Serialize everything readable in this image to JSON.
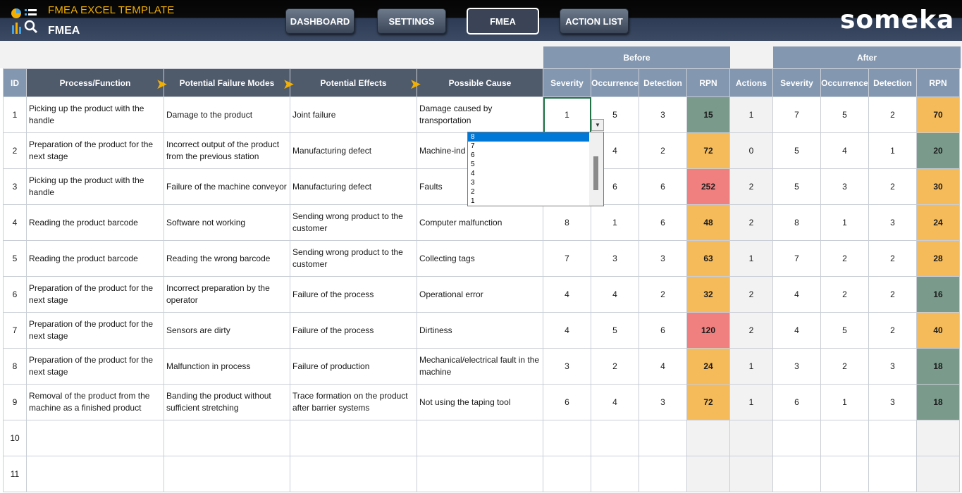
{
  "header": {
    "app_title": "FMEA EXCEL TEMPLATE",
    "page_title": "FMEA",
    "brand": "someka",
    "nav": [
      {
        "label": "DASHBOARD",
        "active": false
      },
      {
        "label": "SETTINGS",
        "active": false
      },
      {
        "label": "FMEA",
        "active": true
      },
      {
        "label": "ACTION LIST",
        "active": false
      }
    ]
  },
  "groups": {
    "before": "Before",
    "after": "After"
  },
  "columns": {
    "id": "ID",
    "process": "Process/Function",
    "failure": "Potential Failure Modes",
    "effects": "Potential Effects",
    "cause": "Possible Cause",
    "severity": "Severity",
    "occurrence": "Occurrence",
    "detection": "Detection",
    "rpn": "RPN",
    "actions": "Actions",
    "severity2": "Severity",
    "occurrence2": "Occurrence",
    "detection2": "Detection",
    "rpn2": "RPN"
  },
  "rows": [
    {
      "id": "1",
      "process": "Picking up the product with the handle",
      "failure": "Damage to the product",
      "effects": "Joint failure",
      "cause": "Damage caused by transportation",
      "sev": "1",
      "occ": "5",
      "det": "3",
      "rpn": "15",
      "act": "1",
      "sev2": "7",
      "occ2": "5",
      "det2": "2",
      "rpn2": "70"
    },
    {
      "id": "2",
      "process": "Preparation of the product for the next stage",
      "failure": "Incorrect output of the product from the previous station",
      "effects": "Manufacturing defect",
      "cause": "Machine-ind",
      "sev": "",
      "occ": "4",
      "det": "2",
      "rpn": "72",
      "act": "0",
      "sev2": "5",
      "occ2": "4",
      "det2": "1",
      "rpn2": "20"
    },
    {
      "id": "3",
      "process": "Picking up the product with the handle",
      "failure": "Failure of the machine conveyor",
      "effects": "Manufacturing defect",
      "cause": "Faults",
      "sev": "",
      "occ": "6",
      "det": "6",
      "rpn": "252",
      "act": "2",
      "sev2": "5",
      "occ2": "3",
      "det2": "2",
      "rpn2": "30"
    },
    {
      "id": "4",
      "process": "Reading the product barcode",
      "failure": "Software not working",
      "effects": "Sending wrong product to the customer",
      "cause": "Computer malfunction",
      "sev": "8",
      "occ": "1",
      "det": "6",
      "rpn": "48",
      "act": "2",
      "sev2": "8",
      "occ2": "1",
      "det2": "3",
      "rpn2": "24"
    },
    {
      "id": "5",
      "process": "Reading the product barcode",
      "failure": "Reading the wrong barcode",
      "effects": "Sending wrong product to the customer",
      "cause": "Collecting tags",
      "sev": "7",
      "occ": "3",
      "det": "3",
      "rpn": "63",
      "act": "1",
      "sev2": "7",
      "occ2": "2",
      "det2": "2",
      "rpn2": "28"
    },
    {
      "id": "6",
      "process": "Preparation of the product for the next stage",
      "failure": "Incorrect preparation by the operator",
      "effects": "Failure of the process",
      "cause": "Operational error",
      "sev": "4",
      "occ": "4",
      "det": "2",
      "rpn": "32",
      "act": "2",
      "sev2": "4",
      "occ2": "2",
      "det2": "2",
      "rpn2": "16"
    },
    {
      "id": "7",
      "process": "Preparation of the product for the next stage",
      "failure": "Sensors are dirty",
      "effects": "Failure of the process",
      "cause": "Dirtiness",
      "sev": "4",
      "occ": "5",
      "det": "6",
      "rpn": "120",
      "act": "2",
      "sev2": "4",
      "occ2": "5",
      "det2": "2",
      "rpn2": "40"
    },
    {
      "id": "8",
      "process": "Preparation of the product for the next stage",
      "failure": "Malfunction in process",
      "effects": "Failure of production",
      "cause": "Mechanical/electrical fault in the machine",
      "sev": "3",
      "occ": "2",
      "det": "4",
      "rpn": "24",
      "act": "1",
      "sev2": "3",
      "occ2": "2",
      "det2": "3",
      "rpn2": "18"
    },
    {
      "id": "9",
      "process": "Removal of the product from the machine as a finished product",
      "failure": "Banding the product without sufficient stretching",
      "effects": "Trace formation on the product after barrier systems",
      "cause": "Not using the taping tool",
      "sev": "6",
      "occ": "4",
      "det": "3",
      "rpn": "72",
      "act": "1",
      "sev2": "6",
      "occ2": "1",
      "det2": "3",
      "rpn2": "18"
    },
    {
      "id": "10",
      "process": "",
      "failure": "",
      "effects": "",
      "cause": "",
      "sev": "",
      "occ": "",
      "det": "",
      "rpn": "",
      "act": "",
      "sev2": "",
      "occ2": "",
      "det2": "",
      "rpn2": ""
    },
    {
      "id": "11",
      "process": "",
      "failure": "",
      "effects": "",
      "cause": "",
      "sev": "",
      "occ": "",
      "det": "",
      "rpn": "",
      "act": "",
      "sev2": "",
      "occ2": "",
      "det2": "",
      "rpn2": ""
    }
  ],
  "rpn_colors": {
    "low": "#7a9a8c",
    "mid": "#f5bb5a",
    "high": "#f08080"
  },
  "rpn_classes": {
    "rpn": [
      "green",
      "orange",
      "red",
      "orange",
      "orange",
      "orange",
      "red",
      "orange",
      "orange",
      "",
      ""
    ],
    "rpn2": [
      "orange",
      "green",
      "orange",
      "orange",
      "orange",
      "green",
      "orange",
      "green",
      "green",
      "",
      ""
    ]
  },
  "dropdown": {
    "options": [
      "8",
      "7",
      "6",
      "5",
      "4",
      "3",
      "2",
      "1"
    ],
    "highlighted": "8"
  }
}
